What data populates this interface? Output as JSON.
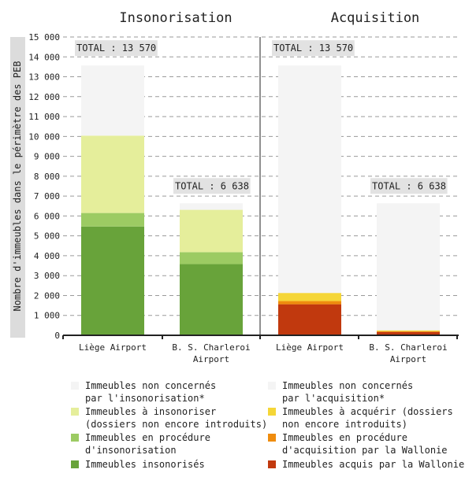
{
  "chart_data": {
    "type": "bar",
    "stacked": true,
    "panels": [
      {
        "title": "Insonorisation",
        "categories": [
          "Liège Airport",
          "B. S. Charleroi Airport"
        ],
        "category_labels": [
          [
            "Liège Airport"
          ],
          [
            "B. S. Charleroi",
            "Airport"
          ]
        ],
        "totals": [
          "TOTAL : 13 570",
          "TOTAL : 6 638"
        ],
        "series": [
          {
            "name": "Immeubles insonorisés",
            "color": "#68a33a",
            "values": [
              5470,
              3580
            ]
          },
          {
            "name": "Immeubles en procédure d'insonorisation",
            "color": "#9ccb63",
            "values": [
              680,
              600
            ]
          },
          {
            "name": "Immeubles à insonoriser (dossiers non encore introduits)",
            "color": "#e5ee9b",
            "values": [
              3890,
              2130
            ]
          },
          {
            "name": "Immeubles non concernés par l'insonorisation*",
            "color": "#f4f4f4",
            "values": [
              3530,
              328
            ]
          }
        ]
      },
      {
        "title": "Acquisition",
        "categories": [
          "Liège Airport",
          "B. S. Charleroi Airport"
        ],
        "category_labels": [
          [
            "Liège Airport"
          ],
          [
            "B. S. Charleroi",
            "Airport"
          ]
        ],
        "totals": [
          "TOTAL : 13 570",
          "TOTAL : 6 638"
        ],
        "series": [
          {
            "name": "Immeubles acquis par la Wallonie",
            "color": "#c1390e",
            "values": [
              1560,
              170
            ]
          },
          {
            "name": "Immeubles en procédure d'acquisition par la Wallonie",
            "color": "#ef8c0e",
            "values": [
              160,
              30
            ]
          },
          {
            "name": "Immeubles à acquérir (dossiers non encore introduits)",
            "color": "#f5d637",
            "values": [
              410,
              50
            ]
          },
          {
            "name": "Immeubles non concernés par l'acquisition*",
            "color": "#f4f4f4",
            "values": [
              11440,
              6388
            ]
          }
        ]
      }
    ],
    "ylabel": "Nombre d'immeubles dans le périmètre des PEB",
    "ylim": [
      0,
      15000
    ],
    "yticks": [
      0,
      1000,
      2000,
      3000,
      4000,
      5000,
      6000,
      7000,
      8000,
      9000,
      10000,
      11000,
      12000,
      13000,
      14000,
      15000
    ],
    "ytick_labels": [
      "0",
      "1 000",
      "2 000",
      "3 000",
      "4 000",
      "5 000",
      "6 000",
      "7 000",
      "8 000",
      "9 000",
      "10 000",
      "11 000",
      "12 000",
      "13 000",
      "14 000",
      "15 000"
    ],
    "grid": true,
    "legend_position": "bottom"
  },
  "legend": {
    "left": [
      {
        "text": "Immeubles non concernés\npar l'insonorisation*",
        "color": "#f4f4f4"
      },
      {
        "text": "Immeubles à insonoriser\n(dossiers non encore introduits)",
        "color": "#e5ee9b"
      },
      {
        "text": "Immeubles en procédure\nd'insonorisation",
        "color": "#9ccb63"
      },
      {
        "text": "Immeubles insonorisés",
        "color": "#68a33a"
      }
    ],
    "right": [
      {
        "text": "Immeubles non concernés\npar l'acquisition*",
        "color": "#f4f4f4"
      },
      {
        "text": "Immeubles à acquérir (dossiers\nnon encore introduits)",
        "color": "#f5d637"
      },
      {
        "text": "Immeubles en procédure\nd'acquisition par la Wallonie",
        "color": "#ef8c0e"
      },
      {
        "text": "Immeubles acquis par la Wallonie",
        "color": "#c1390e"
      }
    ]
  }
}
